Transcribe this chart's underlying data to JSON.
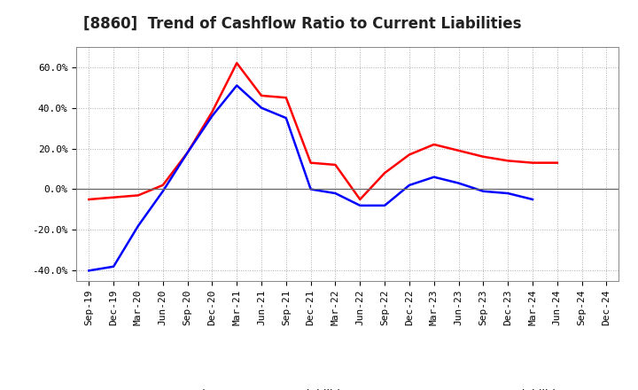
{
  "title": "[8860]  Trend of Cashflow Ratio to Current Liabilities",
  "x_labels": [
    "Sep-19",
    "Dec-19",
    "Mar-20",
    "Jun-20",
    "Sep-20",
    "Dec-20",
    "Mar-21",
    "Jun-21",
    "Sep-21",
    "Dec-21",
    "Mar-22",
    "Jun-22",
    "Sep-22",
    "Dec-22",
    "Mar-23",
    "Jun-23",
    "Sep-23",
    "Dec-23",
    "Mar-24",
    "Jun-24",
    "Sep-24",
    "Dec-24"
  ],
  "operating_cf": [
    -5.0,
    -4.0,
    -3.0,
    2.0,
    18.0,
    38.0,
    62.0,
    46.0,
    45.0,
    13.0,
    12.0,
    -5.0,
    8.0,
    17.0,
    22.0,
    19.0,
    16.0,
    14.0,
    13.0,
    13.0,
    null,
    null
  ],
  "free_cf": [
    -40.0,
    -38.0,
    -18.0,
    -1.0,
    18.0,
    36.0,
    51.0,
    40.0,
    35.0,
    0.0,
    -2.0,
    -8.0,
    -8.0,
    2.0,
    6.0,
    3.0,
    -1.0,
    -2.0,
    -5.0,
    null,
    null,
    null
  ],
  "ylim": [
    -45,
    70
  ],
  "yticks": [
    -40.0,
    -20.0,
    0.0,
    20.0,
    40.0,
    60.0
  ],
  "ytick_labels": [
    "-40.0%",
    "-20.0%",
    "0.0%",
    "20.0%",
    "40.0%",
    "60.0%"
  ],
  "operating_color": "#ff0000",
  "free_color": "#0000ff",
  "bg_color": "#ffffff",
  "plot_bg_color": "#ffffff",
  "grid_color": "#999999",
  "legend_operating": "Operating CF to Current Liabilities",
  "legend_free": "Free CF to Current Liabilities",
  "title_fontsize": 12,
  "axis_fontsize": 8,
  "legend_fontsize": 9
}
